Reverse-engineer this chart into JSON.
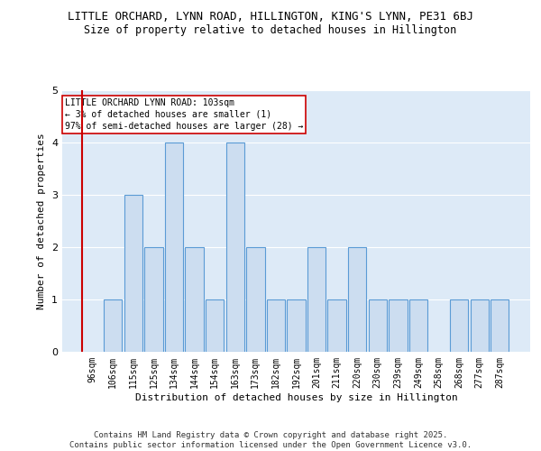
{
  "title_line1": "LITTLE ORCHARD, LYNN ROAD, HILLINGTON, KING'S LYNN, PE31 6BJ",
  "title_line2": "Size of property relative to detached houses in Hillington",
  "xlabel": "Distribution of detached houses by size in Hillington",
  "ylabel": "Number of detached properties",
  "categories": [
    "96sqm",
    "106sqm",
    "115sqm",
    "125sqm",
    "134sqm",
    "144sqm",
    "154sqm",
    "163sqm",
    "173sqm",
    "182sqm",
    "192sqm",
    "201sqm",
    "211sqm",
    "220sqm",
    "230sqm",
    "239sqm",
    "249sqm",
    "258sqm",
    "268sqm",
    "277sqm",
    "287sqm"
  ],
  "values": [
    0,
    1,
    3,
    2,
    4,
    2,
    1,
    4,
    2,
    1,
    1,
    2,
    1,
    2,
    1,
    1,
    1,
    0,
    1,
    1,
    1
  ],
  "bar_color": "#ccddf0",
  "bar_edge_color": "#5b9bd5",
  "plot_bg_color": "#ddeaf7",
  "background_color": "#ffffff",
  "annotation_text_line1": "LITTLE ORCHARD LYNN ROAD: 103sqm",
  "annotation_text_line2": "← 3% of detached houses are smaller (1)",
  "annotation_text_line3": "97% of semi-detached houses are larger (28) →",
  "annotation_box_color": "#ffffff",
  "annotation_box_edge_color": "#cc0000",
  "red_line_color": "#cc0000",
  "ylim": [
    0,
    5
  ],
  "yticks": [
    0,
    1,
    2,
    3,
    4,
    5
  ],
  "footer_text": "Contains HM Land Registry data © Crown copyright and database right 2025.\nContains public sector information licensed under the Open Government Licence v3.0.",
  "title_fontsize": 9,
  "subtitle_fontsize": 8.5,
  "tick_fontsize": 7,
  "ylabel_fontsize": 8,
  "xlabel_fontsize": 8,
  "annotation_fontsize": 7,
  "footer_fontsize": 6.5
}
